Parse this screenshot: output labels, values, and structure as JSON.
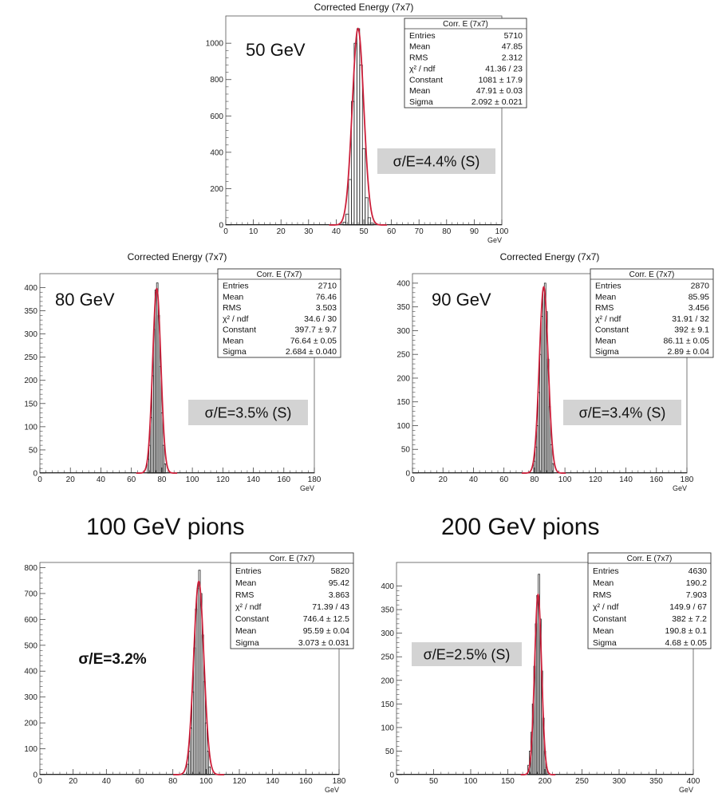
{
  "section_labels": {
    "left": "100 GeV pions",
    "right": "200 GeV pions"
  },
  "colors": {
    "histogram": "#222222",
    "fit": "#cc1f3a",
    "stats_border": "#333333",
    "resolution_box": "#d3d3d3"
  },
  "chart_data": [
    {
      "type": "histogram",
      "title": "Corrected Energy (7x7)",
      "energy_label": "50 GeV",
      "resolution_label": "σ/E=4.4% (S)",
      "resolution_boxed": true,
      "resolution_bold": false,
      "stats_title": "Corr. E (7x7)",
      "stats": [
        [
          "Entries",
          "5710"
        ],
        [
          "Mean",
          "47.85"
        ],
        [
          "RMS",
          "2.312"
        ],
        [
          "χ² / ndf",
          "41.36 / 23"
        ],
        [
          "Constant",
          "1081 ± 17.9"
        ],
        [
          "Mean",
          "47.91 ± 0.03"
        ],
        [
          "Sigma",
          "2.092 ± 0.021"
        ]
      ],
      "xlabel": "GeV",
      "xlim": [
        0,
        100
      ],
      "ylim": [
        0,
        1150
      ],
      "x_ticks": [
        "0",
        "10",
        "20",
        "30",
        "40",
        "50",
        "60",
        "70",
        "80",
        "90",
        "100"
      ],
      "y_ticks": [
        "0",
        "200",
        "400",
        "600",
        "800",
        "1000"
      ],
      "fit": {
        "constant": 1081,
        "mean": 47.91,
        "sigma": 2.092
      },
      "bin_width": 1,
      "bins": [
        [
          43,
          15
        ],
        [
          44,
          60
        ],
        [
          45,
          250
        ],
        [
          46,
          680
        ],
        [
          47,
          1000
        ],
        [
          48,
          1080
        ],
        [
          49,
          880
        ],
        [
          50,
          420
        ],
        [
          51,
          150
        ],
        [
          52,
          40
        ],
        [
          53,
          10
        ]
      ]
    },
    {
      "type": "histogram",
      "title": "Corrected Energy (7x7)",
      "energy_label": "80 GeV",
      "resolution_label": "σ/E=3.5% (S)",
      "resolution_boxed": true,
      "resolution_bold": false,
      "stats_title": "Corr. E (7x7)",
      "stats": [
        [
          "Entries",
          "2710"
        ],
        [
          "Mean",
          "76.46"
        ],
        [
          "RMS",
          "3.503"
        ],
        [
          "χ² / ndf",
          "34.6 / 30"
        ],
        [
          "Constant",
          "397.7 ± 9.7"
        ],
        [
          "Mean",
          "76.64 ± 0.05"
        ],
        [
          "Sigma",
          "2.684 ± 0.040"
        ]
      ],
      "xlabel": "GeV",
      "xlim": [
        0,
        180
      ],
      "ylim": [
        0,
        430
      ],
      "x_ticks": [
        "0",
        "20",
        "40",
        "60",
        "80",
        "100",
        "120",
        "140",
        "160",
        "180"
      ],
      "y_ticks": [
        "0",
        "50",
        "100",
        "150",
        "200",
        "250",
        "300",
        "350",
        "400"
      ],
      "fit": {
        "constant": 397.7,
        "mean": 76.64,
        "sigma": 2.684
      },
      "bin_width": 1,
      "bins": [
        [
          71,
          30
        ],
        [
          72,
          60
        ],
        [
          73,
          120
        ],
        [
          74,
          210
        ],
        [
          75,
          310
        ],
        [
          76,
          395
        ],
        [
          77,
          410
        ],
        [
          78,
          340
        ],
        [
          79,
          230
        ],
        [
          80,
          130
        ],
        [
          81,
          60
        ],
        [
          82,
          20
        ]
      ]
    },
    {
      "type": "histogram",
      "title": "Corrected Energy (7x7)",
      "energy_label": "90 GeV",
      "resolution_label": "σ/E=3.4% (S)",
      "resolution_boxed": true,
      "resolution_bold": false,
      "stats_title": "Corr. E (7x7)",
      "stats": [
        [
          "Entries",
          "2870"
        ],
        [
          "Mean",
          "85.95"
        ],
        [
          "RMS",
          "3.456"
        ],
        [
          "χ² / ndf",
          "31.91 / 32"
        ],
        [
          "Constant",
          "392 ± 9.1"
        ],
        [
          "Mean",
          "86.11 ± 0.05"
        ],
        [
          "Sigma",
          "2.89 ± 0.04"
        ]
      ],
      "xlabel": "GeV",
      "xlim": [
        0,
        180
      ],
      "ylim": [
        0,
        420
      ],
      "x_ticks": [
        "0",
        "20",
        "40",
        "60",
        "80",
        "100",
        "120",
        "140",
        "160",
        "180"
      ],
      "y_ticks": [
        "0",
        "50",
        "100",
        "150",
        "200",
        "250",
        "300",
        "350",
        "400"
      ],
      "fit": {
        "constant": 392,
        "mean": 86.11,
        "sigma": 2.89
      },
      "bin_width": 1,
      "bins": [
        [
          80,
          25
        ],
        [
          81,
          55
        ],
        [
          82,
          100
        ],
        [
          83,
          170
        ],
        [
          84,
          250
        ],
        [
          85,
          330
        ],
        [
          86,
          385
        ],
        [
          87,
          400
        ],
        [
          88,
          340
        ],
        [
          89,
          240
        ],
        [
          90,
          140
        ],
        [
          91,
          60
        ],
        [
          92,
          20
        ]
      ]
    },
    {
      "type": "histogram",
      "title": "",
      "energy_label": "",
      "resolution_label": "σ/E=3.2%",
      "resolution_boxed": false,
      "resolution_bold": true,
      "stats_title": "Corr. E (7x7)",
      "stats": [
        [
          "Entries",
          "5820"
        ],
        [
          "Mean",
          "95.42"
        ],
        [
          "RMS",
          "3.863"
        ],
        [
          "χ² / ndf",
          "71.39 / 43"
        ],
        [
          "Constant",
          "746.4 ± 12.5"
        ],
        [
          "Mean",
          "95.59 ± 0.04"
        ],
        [
          "Sigma",
          "3.073 ± 0.031"
        ]
      ],
      "xlabel": "GeV",
      "xlim": [
        0,
        180
      ],
      "ylim": [
        0,
        820
      ],
      "x_ticks": [
        "0",
        "20",
        "40",
        "60",
        "80",
        "100",
        "120",
        "140",
        "160",
        "180"
      ],
      "y_ticks": [
        "0",
        "100",
        "200",
        "300",
        "400",
        "500",
        "600",
        "700",
        "800"
      ],
      "fit": {
        "constant": 746.4,
        "mean": 95.59,
        "sigma": 3.073
      },
      "bin_width": 1,
      "bins": [
        [
          89,
          40
        ],
        [
          90,
          90
        ],
        [
          91,
          180
        ],
        [
          92,
          320
        ],
        [
          93,
          490
        ],
        [
          94,
          640
        ],
        [
          95,
          720
        ],
        [
          96,
          790
        ],
        [
          97,
          700
        ],
        [
          98,
          540
        ],
        [
          99,
          360
        ],
        [
          100,
          200
        ],
        [
          101,
          90
        ],
        [
          102,
          30
        ]
      ]
    },
    {
      "type": "histogram",
      "title": "",
      "energy_label": "",
      "resolution_label": "σ/E=2.5% (S)",
      "resolution_boxed": true,
      "resolution_bold": false,
      "stats_title": "Corr. E (7x7)",
      "stats": [
        [
          "Entries",
          "4630"
        ],
        [
          "Mean",
          "190.2"
        ],
        [
          "RMS",
          "7.903"
        ],
        [
          "χ² / ndf",
          "149.9 / 67"
        ],
        [
          "Constant",
          "382 ± 7.2"
        ],
        [
          "Mean",
          "190.8 ± 0.1"
        ],
        [
          "Sigma",
          "4.68 ± 0.05"
        ]
      ],
      "xlabel": "GeV",
      "xlim": [
        0,
        400
      ],
      "ylim": [
        0,
        450
      ],
      "x_ticks": [
        "0",
        "50",
        "100",
        "150",
        "200",
        "250",
        "300",
        "350",
        "400"
      ],
      "y_ticks": [
        "0",
        "50",
        "100",
        "150",
        "200",
        "250",
        "300",
        "350",
        "400"
      ],
      "fit": {
        "constant": 382,
        "mean": 190.8,
        "sigma": 4.68
      },
      "bin_width": 2,
      "bins": [
        [
          178,
          20
        ],
        [
          180,
          50
        ],
        [
          182,
          90
        ],
        [
          184,
          150
        ],
        [
          186,
          230
        ],
        [
          188,
          320
        ],
        [
          190,
          380
        ],
        [
          192,
          425
        ],
        [
          194,
          330
        ],
        [
          196,
          220
        ],
        [
          198,
          120
        ],
        [
          200,
          50
        ],
        [
          202,
          15
        ]
      ]
    }
  ]
}
